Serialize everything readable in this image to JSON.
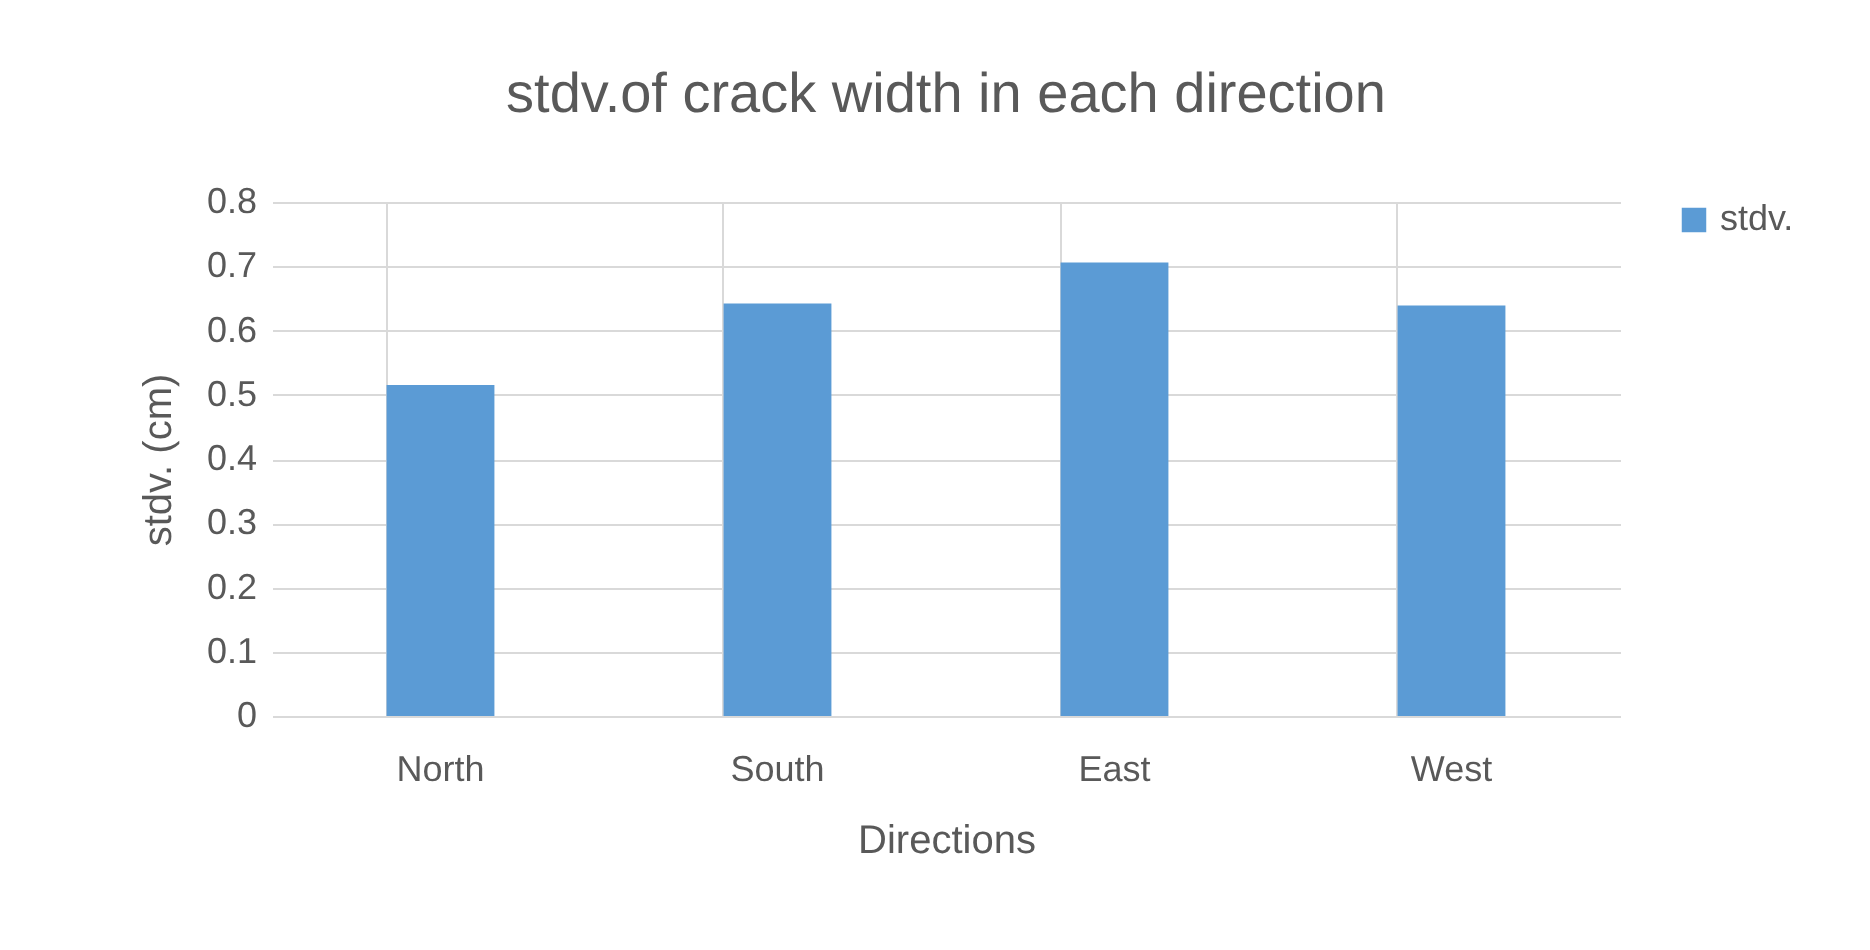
{
  "chart_data": {
    "type": "bar",
    "title": "stdv.of crack width in each direction",
    "xlabel": "Directions",
    "ylabel": "stdv. (cm)",
    "categories": [
      "North",
      "South",
      "East",
      "West"
    ],
    "series": [
      {
        "name": "stdv.",
        "color": "#5b9bd5",
        "values": [
          0.515,
          0.642,
          0.706,
          0.639
        ]
      }
    ],
    "ylim": [
      0,
      0.8
    ],
    "yticks": [
      0,
      0.1,
      0.2,
      0.3,
      0.4,
      0.5,
      0.6,
      0.7,
      0.8
    ],
    "grid": true,
    "legend": "right"
  }
}
